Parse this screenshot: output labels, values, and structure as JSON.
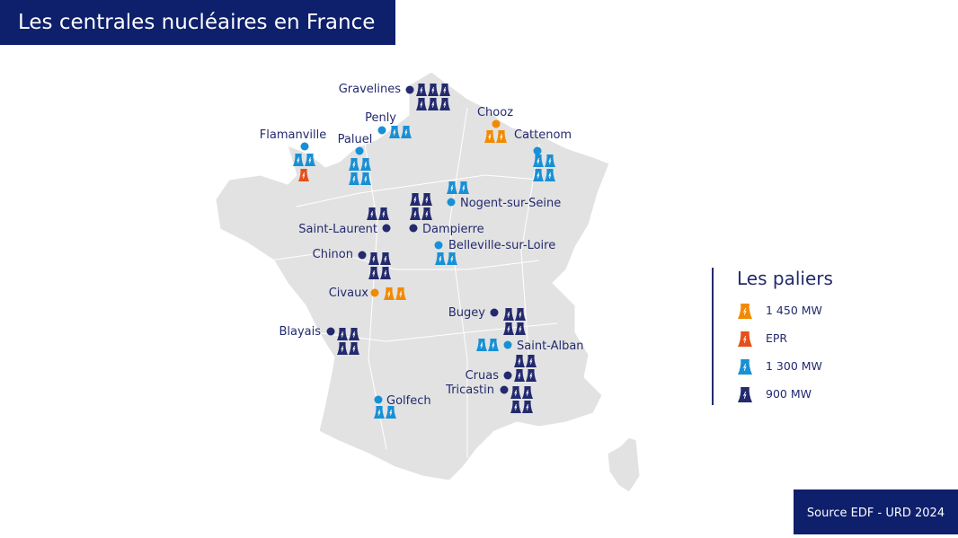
{
  "title": "Les centrales nucléaires en France",
  "source": "Source EDF - URD 2024",
  "colors": {
    "1450": "#f28a00",
    "EPR": "#e5501c",
    "1300": "#1890d5",
    "900": "#232a6e",
    "land": "#e2e2e2",
    "header": "#0e1f6b"
  },
  "legend": {
    "title": "Les paliers",
    "items": [
      {
        "type": "1450",
        "label": "1 450 MW"
      },
      {
        "type": "EPR",
        "label": "EPR"
      },
      {
        "type": "1300",
        "label": "1 300 MW"
      },
      {
        "type": "900",
        "label": "900 MW"
      }
    ]
  },
  "plants": [
    {
      "name": "Gravelines",
      "type": "900",
      "reactors": 6
    },
    {
      "name": "Penly",
      "type": "1300",
      "reactors": 2
    },
    {
      "name": "Chooz",
      "type": "1450",
      "reactors": 2
    },
    {
      "name": "Cattenom",
      "type": "1300",
      "reactors": 4
    },
    {
      "name": "Flamanville",
      "type": "1300",
      "reactors": 2,
      "epr": 1
    },
    {
      "name": "Paluel",
      "type": "1300",
      "reactors": 4
    },
    {
      "name": "Nogent-sur-Seine",
      "type": "1300",
      "reactors": 2
    },
    {
      "name": "Dampierre",
      "type": "900",
      "reactors": 4
    },
    {
      "name": "Saint-Laurent",
      "type": "900",
      "reactors": 2
    },
    {
      "name": "Belleville-sur-Loire",
      "type": "1300",
      "reactors": 2
    },
    {
      "name": "Chinon",
      "type": "900",
      "reactors": 4
    },
    {
      "name": "Civaux",
      "type": "1450",
      "reactors": 2
    },
    {
      "name": "Bugey",
      "type": "900",
      "reactors": 4
    },
    {
      "name": "Saint-Alban",
      "type": "1300",
      "reactors": 2
    },
    {
      "name": "Blayais",
      "type": "900",
      "reactors": 4
    },
    {
      "name": "Cruas",
      "type": "900",
      "reactors": 4
    },
    {
      "name": "Tricastin",
      "type": "900",
      "reactors": 4
    },
    {
      "name": "Golfech",
      "type": "1300",
      "reactors": 2
    }
  ]
}
